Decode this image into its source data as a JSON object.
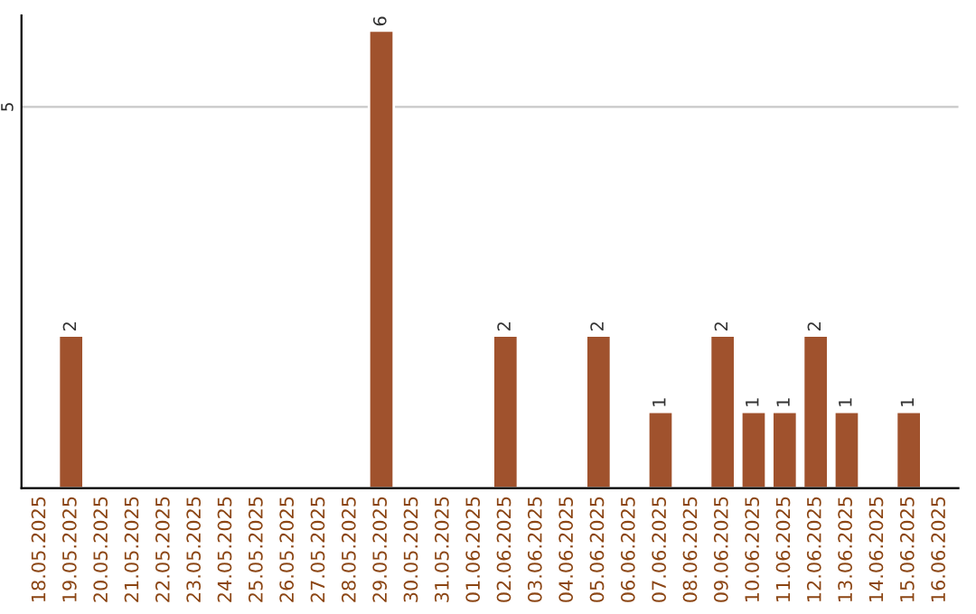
{
  "chart_data": {
    "type": "bar",
    "categories": [
      "18.05.2025",
      "19.05.2025",
      "20.05.2025",
      "21.05.2025",
      "22.05.2025",
      "23.05.2025",
      "24.05.2025",
      "25.05.2025",
      "26.05.2025",
      "27.05.2025",
      "28.05.2025",
      "29.05.2025",
      "30.05.2025",
      "31.05.2025",
      "01.06.2025",
      "02.06.2025",
      "03.06.2025",
      "04.06.2025",
      "05.06.2025",
      "06.06.2025",
      "07.06.2025",
      "08.06.2025",
      "09.06.2025",
      "10.06.2025",
      "11.06.2025",
      "12.06.2025",
      "13.06.2025",
      "14.06.2025",
      "15.06.2025",
      "16.06.2025"
    ],
    "values": [
      0,
      2,
      0,
      0,
      0,
      0,
      0,
      0,
      0,
      0,
      0,
      6,
      0,
      0,
      0,
      2,
      0,
      0,
      2,
      0,
      1,
      0,
      2,
      1,
      1,
      2,
      1,
      0,
      1,
      0
    ],
    "value_labels": [
      null,
      "2",
      null,
      null,
      null,
      null,
      null,
      null,
      null,
      null,
      null,
      "6",
      null,
      null,
      null,
      "2",
      null,
      null,
      "2",
      null,
      "1",
      null,
      "2",
      "1",
      "1",
      "2",
      "1",
      null,
      "1",
      null
    ],
    "color": "#a0522d",
    "ylim": [
      0,
      6.2
    ],
    "yticks": [
      5
    ],
    "grid": "y",
    "legend": false
  }
}
